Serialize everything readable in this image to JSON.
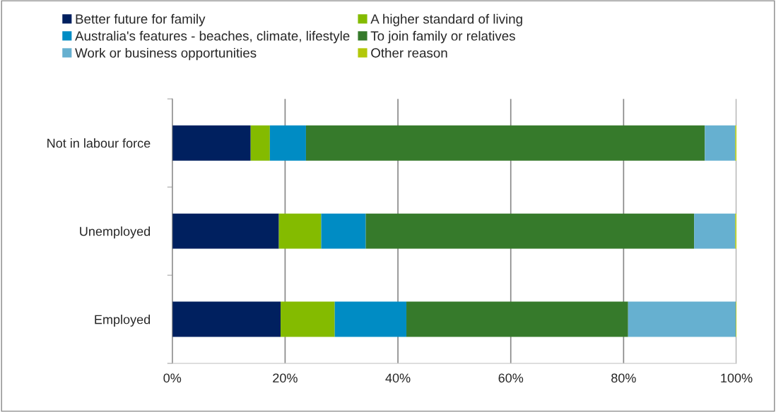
{
  "chart_data": {
    "type": "bar",
    "orientation": "horizontal",
    "stacked": true,
    "categories": [
      "Not in labour force",
      "Unemployed",
      "Employed"
    ],
    "series": [
      {
        "name": "Better future for family",
        "color": "#00205f",
        "values": [
          13.9,
          18.9,
          19.2
        ]
      },
      {
        "name": "A higher standard of living",
        "color": "#84bb00",
        "values": [
          3.4,
          7.5,
          9.6
        ]
      },
      {
        "name": "Australia's features - beaches, climate, lifestyle",
        "color": "#008cc4",
        "values": [
          6.4,
          7.9,
          12.7
        ]
      },
      {
        "name": "To join family or relatives",
        "color": "#367a2b",
        "values": [
          70.7,
          58.2,
          39.3
        ]
      },
      {
        "name": "Work or business opportunities",
        "color": "#66b0d0",
        "values": [
          5.4,
          7.3,
          19.1
        ]
      },
      {
        "name": "Other reason",
        "color": "#b3c80a",
        "values": [
          0.2,
          0.2,
          0.1
        ]
      }
    ],
    "xlim": [
      0,
      100
    ],
    "xticks": [
      {
        "value": 0,
        "label": "0%"
      },
      {
        "value": 20,
        "label": "20%"
      },
      {
        "value": 40,
        "label": "40%"
      },
      {
        "value": 60,
        "label": "60%"
      },
      {
        "value": 80,
        "label": "80%"
      },
      {
        "value": 100,
        "label": "100%"
      }
    ],
    "grid": "x",
    "legend": "top"
  }
}
